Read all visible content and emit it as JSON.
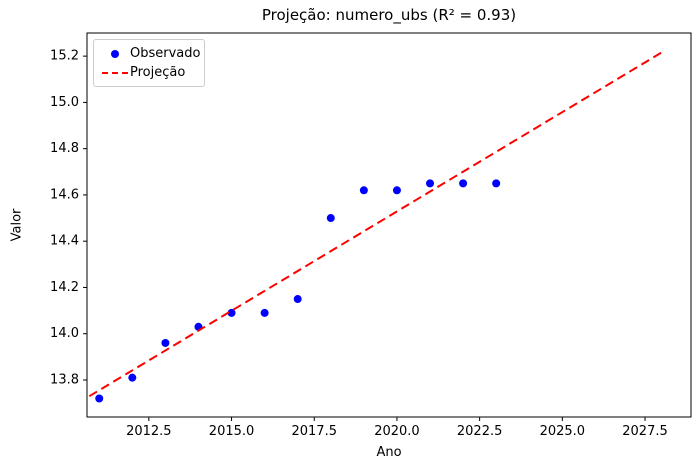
{
  "chart_data": {
    "type": "scatter",
    "title": "Projeção: numero_ubs (R² = 0.93)",
    "xlabel": "Ano",
    "ylabel": "Valor",
    "xlim": [
      2010.63,
      2028.89
    ],
    "ylim": [
      13.64,
      15.3
    ],
    "grid": false,
    "xticks": {
      "values": [
        2012.5,
        2015.0,
        2017.5,
        2020.0,
        2022.5,
        2025.0,
        2027.5
      ],
      "labels": [
        "2012.5",
        "2015.0",
        "2017.5",
        "2020.0",
        "2022.5",
        "2025.0",
        "2027.5"
      ]
    },
    "yticks": {
      "values": [
        13.8,
        14.0,
        14.2,
        14.4,
        14.6,
        14.8,
        15.0,
        15.2
      ],
      "labels": [
        "13.8",
        "14.0",
        "14.2",
        "14.4",
        "14.6",
        "14.8",
        "15.0",
        "15.2"
      ]
    },
    "legend": {
      "position": "upper-left",
      "entries": [
        {
          "label": "Observado",
          "marker": "dot",
          "color": "#0000ff"
        },
        {
          "label": "Projeção",
          "marker": "dashed-line",
          "color": "#ff0000"
        }
      ]
    },
    "series": [
      {
        "name": "Observado",
        "type": "scatter",
        "color": "#0000ff",
        "x": [
          2011,
          2012,
          2013,
          2014,
          2015,
          2016,
          2017,
          2018,
          2019,
          2020,
          2021,
          2022,
          2023
        ],
        "y": [
          13.72,
          13.81,
          13.96,
          14.03,
          14.09,
          14.09,
          14.15,
          14.5,
          14.62,
          14.62,
          14.65,
          14.65,
          14.65
        ]
      },
      {
        "name": "Projeção",
        "type": "line",
        "style": "dashed",
        "color": "#ff0000",
        "x": [
          2010.7,
          2028.05
        ],
        "y": [
          13.73,
          15.22
        ]
      }
    ]
  },
  "colors": {
    "observed": "#0000ff",
    "projection": "#ff0000",
    "spine": "#000000",
    "legend_border": "#cccccc",
    "background": "#ffffff"
  }
}
